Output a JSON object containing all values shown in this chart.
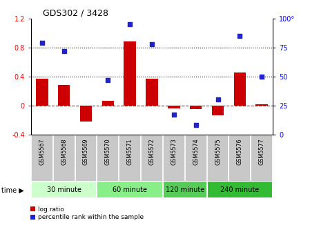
{
  "title": "GDS302 / 3428",
  "samples": [
    "GSM5567",
    "GSM5568",
    "GSM5569",
    "GSM5570",
    "GSM5571",
    "GSM5572",
    "GSM5573",
    "GSM5574",
    "GSM5575",
    "GSM5576",
    "GSM5577"
  ],
  "log_ratio": [
    0.37,
    0.28,
    -0.22,
    0.07,
    0.88,
    0.37,
    -0.04,
    -0.05,
    -0.13,
    0.46,
    0.02
  ],
  "percentile": [
    79,
    72,
    47,
    95,
    78,
    17,
    8,
    30,
    85,
    50
  ],
  "percentile_x": [
    0,
    1,
    3,
    4,
    5,
    6,
    7,
    8,
    9,
    10
  ],
  "groups": [
    {
      "label": "30 minute",
      "start": 0,
      "end": 3,
      "color": "#ccffcc"
    },
    {
      "label": "60 minute",
      "start": 3,
      "end": 6,
      "color": "#88ee88"
    },
    {
      "label": "120 minute",
      "start": 6,
      "end": 8,
      "color": "#55cc55"
    },
    {
      "label": "240 minute",
      "start": 8,
      "end": 11,
      "color": "#33bb33"
    }
  ],
  "bar_color": "#cc0000",
  "dot_color": "#2222cc",
  "ylim_left": [
    -0.4,
    1.2
  ],
  "ylim_right": [
    0,
    100
  ],
  "yticks_left": [
    -0.4,
    0.0,
    0.4,
    0.8,
    1.2
  ],
  "yticks_right": [
    0,
    25,
    50,
    75,
    100
  ],
  "hlines": [
    0.4,
    0.8
  ],
  "zero_line_color": "#cc0000",
  "dotted_line_color": "black",
  "legend_labels": [
    "log ratio",
    "percentile rank within the sample"
  ]
}
